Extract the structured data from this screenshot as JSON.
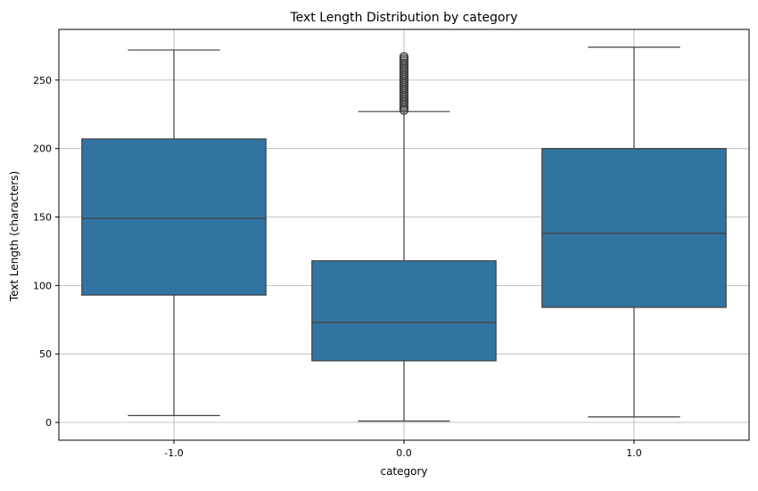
{
  "chart_data": {
    "type": "box",
    "title": "Text Length Distribution by category",
    "xlabel": "category",
    "ylabel": "Text Length (characters)",
    "ylim": [
      -13,
      287
    ],
    "yticks": [
      0,
      50,
      100,
      150,
      200,
      250
    ],
    "grid": true,
    "color": "#3274a1",
    "categories": [
      "-1.0",
      "0.0",
      "1.0"
    ],
    "boxes": [
      {
        "category": "-1.0",
        "whisker_low": 5,
        "q1": 93,
        "median": 149,
        "q3": 207,
        "whisker_high": 272,
        "outliers_range": null
      },
      {
        "category": "0.0",
        "whisker_low": 1,
        "q1": 45,
        "median": 73,
        "q3": 118,
        "whisker_high": 227,
        "outliers_range": [
          228,
          268
        ]
      },
      {
        "category": "1.0",
        "whisker_low": 4,
        "q1": 84,
        "median": 138,
        "q3": 200,
        "whisker_high": 274,
        "outliers_range": null
      }
    ]
  }
}
